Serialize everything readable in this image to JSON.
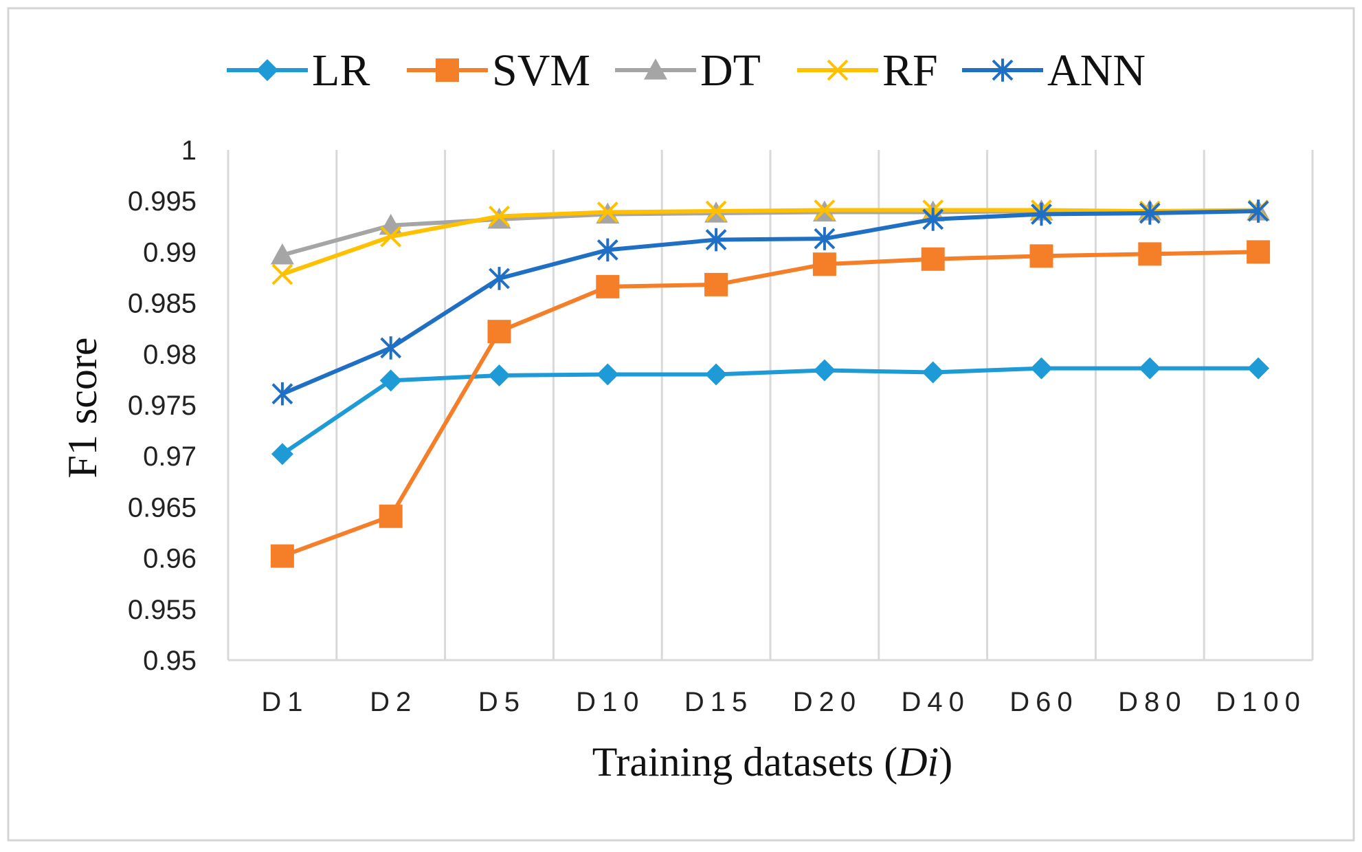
{
  "chart_data": {
    "type": "line",
    "title": "",
    "xlabel": "Training datasets (",
    "xlabel_italic": "Di",
    "xlabel_close": ")",
    "ylabel": "F1 score",
    "categories": [
      "D1",
      "D2",
      "D5",
      "D10",
      "D15",
      "D20",
      "D40",
      "D60",
      "D80",
      "D100"
    ],
    "ylim": [
      0.95,
      1
    ],
    "yticks": [
      0.95,
      0.955,
      0.96,
      0.965,
      0.97,
      0.975,
      0.98,
      0.985,
      0.99,
      0.995,
      1
    ],
    "ytick_labels": [
      "0.95",
      "0.955",
      "0.96",
      "0.965",
      "0.97",
      "0.975",
      "0.98",
      "0.985",
      "0.99",
      "0.995",
      "1"
    ],
    "grid": "vertical",
    "legend_position": "top",
    "series": [
      {
        "name": "LR",
        "color": "#1e9ad6",
        "marker": "diamond",
        "values": [
          0.9702,
          0.9774,
          0.9779,
          0.978,
          0.978,
          0.9784,
          0.9782,
          0.9786,
          0.9786,
          0.9786
        ]
      },
      {
        "name": "SVM",
        "color": "#f57f29",
        "marker": "square",
        "values": [
          0.9602,
          0.9641,
          0.9822,
          0.9866,
          0.9868,
          0.9888,
          0.9893,
          0.9896,
          0.9898,
          0.99
        ]
      },
      {
        "name": "DT",
        "color": "#a5a5a5",
        "marker": "triangle",
        "values": [
          0.9897,
          0.9926,
          0.9932,
          0.9937,
          0.9938,
          0.9939,
          0.9939,
          0.994,
          0.994,
          0.994
        ]
      },
      {
        "name": "RF",
        "color": "#ffc000",
        "marker": "x",
        "values": [
          0.9878,
          0.9915,
          0.9935,
          0.9939,
          0.994,
          0.9941,
          0.9941,
          0.9941,
          0.994,
          0.9941
        ]
      },
      {
        "name": "ANN",
        "color": "#1f6fc4",
        "marker": "star",
        "values": [
          0.9761,
          0.9806,
          0.9874,
          0.9902,
          0.9912,
          0.9913,
          0.9932,
          0.9937,
          0.9938,
          0.994
        ]
      }
    ]
  }
}
